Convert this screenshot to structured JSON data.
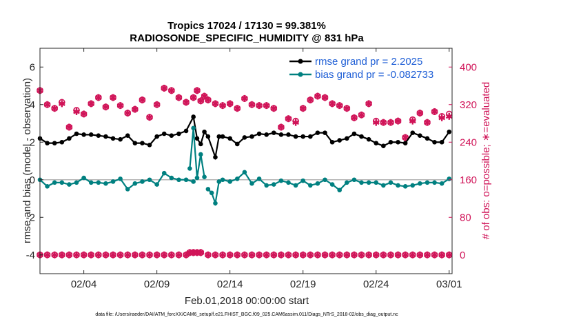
{
  "colors": {
    "rmse": "#000000",
    "bias": "#008080",
    "obs": "#d01458",
    "legend_text": "#1f5fd6",
    "axis": "#262626",
    "zero_line": "#b3b3b3"
  },
  "chart_data": {
    "type": "line",
    "title_line1": "Tropics 17024 / 17130 = 99.381%",
    "title_line2": "RADIOSONDE_SPECIFIC_HUMIDITY @ 831 hPa",
    "xlabel": "Feb.01,2018 00:00:00 start",
    "ylabel": "rmse and bias (model - observation)",
    "ylabel_right": "# of obs: o=possible; ∗=evaluated",
    "x_tick_labels": [
      "02/04",
      "02/09",
      "02/14",
      "02/19",
      "02/24",
      "03/01"
    ],
    "x_tick_days": [
      4,
      9,
      14,
      19,
      24,
      29
    ],
    "xlim": [
      1,
      29.2
    ],
    "ylim": [
      -5,
      7
    ],
    "y_ticks": [
      -4,
      -2,
      0,
      2,
      4,
      6
    ],
    "ylim_right": [
      -40,
      440
    ],
    "y_ticks_right": [
      0,
      80,
      160,
      240,
      320,
      400
    ],
    "legend": {
      "position": "top-right",
      "rmse_label": "rmse grand pr = 2.2025",
      "bias_label": "bias grand pr = -0.082733"
    },
    "footer": "data file: /Users/raeder/DAI/ATM_forcXX/CAM6_setup/f.e21.FHIST_BGC.f09_025.CAM6assim.011/Diags_NTrS_2018-02/obs_diag_output.nc",
    "series": [
      {
        "name": "rmse",
        "segments": [
          [
            [
              1.0,
              2.2
            ],
            [
              1.5,
              1.95
            ],
            [
              2.0,
              1.95
            ],
            [
              2.5,
              2.0
            ],
            [
              3.0,
              2.2
            ],
            [
              3.5,
              2.45
            ],
            [
              4.0,
              2.4
            ],
            [
              4.5,
              2.4
            ],
            [
              5.0,
              2.35
            ],
            [
              5.5,
              2.3
            ],
            [
              6.0,
              2.2
            ],
            [
              6.5,
              2.15
            ],
            [
              7.0,
              2.35
            ],
            [
              7.5,
              1.95
            ],
            [
              8.0,
              1.95
            ],
            [
              8.5,
              1.85
            ],
            [
              9.0,
              2.3
            ],
            [
              9.5,
              2.45
            ],
            [
              10.0,
              2.35
            ],
            [
              10.5,
              2.45
            ],
            [
              11.0,
              2.6
            ],
            [
              11.5,
              3.35
            ],
            [
              11.75,
              2.2
            ],
            [
              12.0,
              1.9
            ],
            [
              12.25,
              2.55
            ],
            [
              12.5,
              2.3
            ],
            [
              13.0,
              1.2
            ],
            [
              13.25,
              2.3
            ],
            [
              13.5,
              2.3
            ],
            [
              14.0,
              2.2
            ],
            [
              14.5,
              1.9
            ],
            [
              15.0,
              2.25
            ],
            [
              15.5,
              2.3
            ],
            [
              16.0,
              2.45
            ],
            [
              16.5,
              2.4
            ],
            [
              17.0,
              2.5
            ],
            [
              17.5,
              2.4
            ],
            [
              18.0,
              2.4
            ],
            [
              18.5,
              2.3
            ],
            [
              19.0,
              2.3
            ],
            [
              19.5,
              2.3
            ],
            [
              20.0,
              2.5
            ],
            [
              20.5,
              2.5
            ],
            [
              21.0,
              2.0
            ],
            [
              21.5,
              2.1
            ],
            [
              22.0,
              2.2
            ],
            [
              22.5,
              2.45
            ],
            [
              23.0,
              2.3
            ],
            [
              23.5,
              2.15
            ],
            [
              24.0,
              1.95
            ],
            [
              24.5,
              1.8
            ],
            [
              25.0,
              2.0
            ],
            [
              25.5,
              2.0
            ],
            [
              26.0,
              1.95
            ],
            [
              26.5,
              2.5
            ],
            [
              27.0,
              2.35
            ],
            [
              27.5,
              2.2
            ],
            [
              28.0,
              2.0
            ],
            [
              28.5,
              2.0
            ],
            [
              29.0,
              2.55
            ]
          ]
        ]
      },
      {
        "name": "bias",
        "segments": [
          [
            [
              1.0,
              0.0
            ],
            [
              1.5,
              -0.35
            ],
            [
              2.0,
              -0.15
            ],
            [
              2.5,
              -0.15
            ],
            [
              3.0,
              -0.25
            ],
            [
              3.5,
              -0.15
            ],
            [
              4.0,
              0.1
            ],
            [
              4.5,
              -0.15
            ],
            [
              5.0,
              -0.15
            ],
            [
              5.5,
              -0.2
            ],
            [
              6.0,
              -0.1
            ],
            [
              6.5,
              0.05
            ],
            [
              7.0,
              -0.5
            ],
            [
              7.5,
              -0.2
            ],
            [
              8.0,
              -0.1
            ],
            [
              8.5,
              0.0
            ],
            [
              9.0,
              -0.25
            ],
            [
              9.5,
              0.35
            ],
            [
              10.0,
              0.1
            ],
            [
              10.5,
              0.0
            ],
            [
              11.0,
              0.0
            ],
            [
              11.5,
              -0.1
            ]
          ],
          [
            [
              11.25,
              0.6
            ],
            [
              11.5,
              2.75
            ],
            [
              11.75,
              0.1
            ],
            [
              12.0,
              1.35
            ],
            [
              12.25,
              0.15
            ]
          ],
          [
            [
              12.5,
              -0.5
            ],
            [
              12.75,
              -0.7
            ],
            [
              13.0,
              -1.25
            ],
            [
              13.25,
              -0.1
            ]
          ],
          [
            [
              13.5,
              0.0
            ],
            [
              14.0,
              -0.1
            ],
            [
              14.5,
              0.05
            ],
            [
              15.0,
              0.4
            ],
            [
              15.5,
              -0.2
            ],
            [
              16.0,
              0.05
            ],
            [
              16.5,
              -0.3
            ],
            [
              17.0,
              -0.25
            ],
            [
              17.5,
              -0.05
            ],
            [
              18.0,
              -0.15
            ],
            [
              18.5,
              -0.3
            ],
            [
              19.0,
              -0.05
            ],
            [
              19.5,
              -0.3
            ],
            [
              20.0,
              -0.2
            ],
            [
              20.5,
              0.0
            ],
            [
              21.0,
              -0.25
            ],
            [
              21.5,
              -0.55
            ],
            [
              22.0,
              -0.15
            ],
            [
              22.5,
              0.0
            ],
            [
              23.0,
              -0.15
            ],
            [
              23.5,
              -0.15
            ],
            [
              24.0,
              -0.15
            ],
            [
              24.5,
              -0.3
            ],
            [
              25.0,
              -0.15
            ],
            [
              25.5,
              -0.3
            ],
            [
              26.0,
              -0.35
            ],
            [
              26.5,
              -0.3
            ],
            [
              27.0,
              -0.2
            ],
            [
              27.5,
              -0.15
            ],
            [
              28.0,
              -0.15
            ],
            [
              28.5,
              -0.2
            ],
            [
              29.0,
              0.05
            ]
          ]
        ]
      }
    ],
    "obs_possible": [
      [
        1.0,
        350
      ],
      [
        1.5,
        320
      ],
      [
        2.0,
        312
      ],
      [
        2.5,
        325
      ],
      [
        3.0,
        272
      ],
      [
        3.5,
        308
      ],
      [
        4.0,
        300
      ],
      [
        4.5,
        322
      ],
      [
        5.0,
        335
      ],
      [
        5.5,
        315
      ],
      [
        6.0,
        335
      ],
      [
        6.5,
        318
      ],
      [
        7.0,
        302
      ],
      [
        7.5,
        310
      ],
      [
        8.0,
        330
      ],
      [
        8.5,
        293
      ],
      [
        9.0,
        320
      ],
      [
        9.5,
        355
      ],
      [
        10.0,
        350
      ],
      [
        10.5,
        335
      ],
      [
        11.0,
        325
      ],
      [
        11.5,
        335
      ],
      [
        11.75,
        350
      ],
      [
        12.0,
        328
      ],
      [
        12.25,
        338
      ],
      [
        12.5,
        330
      ],
      [
        13.0,
        322
      ],
      [
        13.5,
        318
      ],
      [
        14.0,
        322
      ],
      [
        14.5,
        312
      ],
      [
        15.0,
        333
      ],
      [
        15.5,
        320
      ],
      [
        16.0,
        318
      ],
      [
        16.5,
        318
      ],
      [
        17.0,
        312
      ],
      [
        17.5,
        272
      ],
      [
        18.0,
        290
      ],
      [
        18.5,
        285
      ],
      [
        19.0,
        312
      ],
      [
        19.5,
        330
      ],
      [
        20.0,
        338
      ],
      [
        20.5,
        335
      ],
      [
        21.0,
        322
      ],
      [
        21.5,
        318
      ],
      [
        22.0,
        312
      ],
      [
        22.5,
        292
      ],
      [
        23.0,
        298
      ],
      [
        23.5,
        322
      ],
      [
        24.0,
        285
      ],
      [
        24.5,
        282
      ],
      [
        25.0,
        282
      ],
      [
        25.5,
        285
      ],
      [
        26.0,
        250
      ],
      [
        26.5,
        288
      ],
      [
        27.0,
        302
      ],
      [
        27.5,
        282
      ],
      [
        28.0,
        305
      ],
      [
        28.5,
        295
      ],
      [
        29.0,
        300
      ]
    ],
    "obs_evaluated": [
      [
        1.0,
        350
      ],
      [
        1.5,
        320
      ],
      [
        2.0,
        312
      ],
      [
        2.5,
        322
      ],
      [
        3.0,
        272
      ],
      [
        3.5,
        305
      ],
      [
        4.0,
        300
      ],
      [
        4.5,
        322
      ],
      [
        5.0,
        335
      ],
      [
        5.5,
        315
      ],
      [
        6.0,
        335
      ],
      [
        6.5,
        318
      ],
      [
        7.0,
        302
      ],
      [
        7.5,
        310
      ],
      [
        8.0,
        330
      ],
      [
        8.5,
        293
      ],
      [
        9.0,
        320
      ],
      [
        9.5,
        355
      ],
      [
        10.0,
        350
      ],
      [
        10.5,
        335
      ],
      [
        11.0,
        325
      ],
      [
        11.5,
        335
      ],
      [
        11.75,
        350
      ],
      [
        12.0,
        328
      ],
      [
        12.25,
        338
      ],
      [
        12.5,
        330
      ],
      [
        13.0,
        322
      ],
      [
        13.5,
        318
      ],
      [
        14.0,
        322
      ],
      [
        14.5,
        312
      ],
      [
        15.0,
        333
      ],
      [
        15.5,
        320
      ],
      [
        16.0,
        318
      ],
      [
        16.5,
        318
      ],
      [
        17.0,
        312
      ],
      [
        17.5,
        272
      ],
      [
        18.0,
        290
      ],
      [
        18.5,
        282
      ],
      [
        19.0,
        312
      ],
      [
        19.5,
        330
      ],
      [
        20.0,
        338
      ],
      [
        20.5,
        335
      ],
      [
        21.0,
        322
      ],
      [
        21.5,
        318
      ],
      [
        22.0,
        312
      ],
      [
        22.5,
        292
      ],
      [
        23.0,
        298
      ],
      [
        23.5,
        322
      ],
      [
        24.0,
        282
      ],
      [
        24.5,
        282
      ],
      [
        25.0,
        282
      ],
      [
        25.5,
        285
      ],
      [
        26.0,
        250
      ],
      [
        26.5,
        285
      ],
      [
        27.0,
        302
      ],
      [
        27.5,
        282
      ],
      [
        28.0,
        305
      ],
      [
        28.5,
        292
      ],
      [
        29.0,
        295
      ]
    ],
    "obs_bottom_days": [
      1.0,
      1.5,
      2.0,
      2.5,
      3.0,
      3.5,
      4.0,
      4.5,
      5.0,
      5.5,
      6.0,
      6.5,
      7.0,
      7.5,
      8.0,
      8.5,
      9.0,
      9.5,
      10.0,
      10.5,
      11.0,
      11.5,
      12.0,
      12.5,
      13.0,
      13.5,
      14.0,
      14.5,
      15.0,
      15.5,
      16.0,
      16.5,
      17.0,
      17.5,
      18.0,
      18.5,
      19.0,
      19.5,
      20.0,
      20.5,
      21.0,
      21.5,
      22.0,
      22.5,
      23.0,
      23.5,
      24.0,
      24.5,
      25.0,
      25.5,
      26.0,
      26.5,
      27.0,
      27.5,
      28.0,
      28.5,
      29.0
    ],
    "obs_bottom_raised": [
      [
        11.25,
        5
      ],
      [
        11.5,
        5
      ],
      [
        11.75,
        5
      ],
      [
        12.0,
        5
      ]
    ]
  }
}
